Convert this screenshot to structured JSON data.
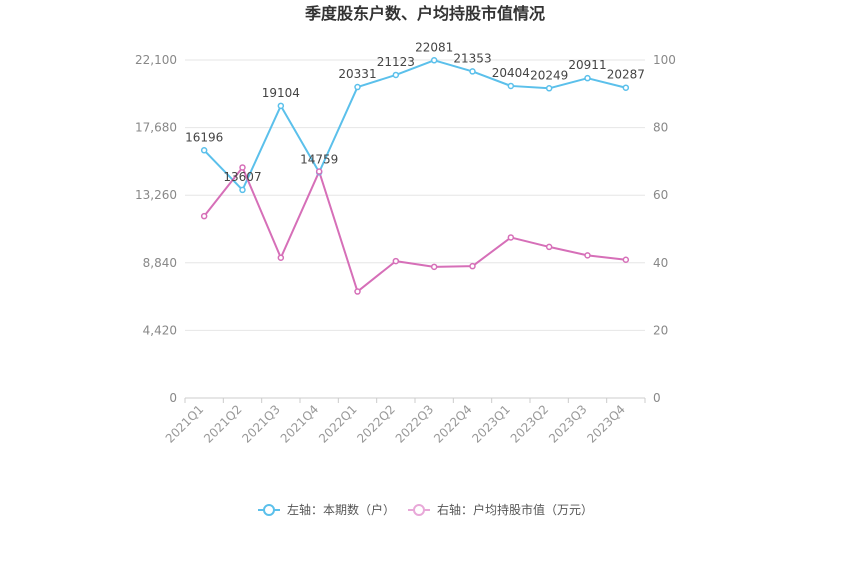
{
  "chart_data": {
    "type": "line",
    "title": "季度股东户数、户均持股市值情况",
    "categories": [
      "2021Q1",
      "2021Q2",
      "2021Q3",
      "2021Q4",
      "2022Q1",
      "2022Q2",
      "2022Q3",
      "2022Q4",
      "2023Q1",
      "2023Q2",
      "2023Q3",
      "2023Q4"
    ],
    "left_axis": {
      "min": 0,
      "max": 22100,
      "ticks": [
        "0",
        "4,420",
        "8,840",
        "13,260",
        "17,680",
        "22,100"
      ]
    },
    "right_axis": {
      "min": 0,
      "max": 100,
      "ticks": [
        "0",
        "20",
        "40",
        "60",
        "80",
        "100"
      ]
    },
    "series": [
      {
        "name": "左轴：本期数（户）",
        "axis": "left",
        "color": "#5bc0eb",
        "values": [
          16196,
          13607,
          19104,
          14759,
          20331,
          21123,
          22081,
          21353,
          20404,
          20249,
          20911,
          20287
        ],
        "labels": [
          "16196",
          "13607",
          "19104",
          "14759",
          "20331",
          "21123",
          "22081",
          "21353",
          "20404",
          "20249",
          "20911",
          "20287"
        ]
      },
      {
        "name": "右轴：户均持股市值（万元）",
        "axis": "right",
        "color": "#d66fb8",
        "values": [
          53.8,
          68.2,
          41.5,
          67.0,
          31.5,
          40.5,
          38.8,
          39.0,
          47.5,
          44.7,
          42.2,
          40.9
        ]
      }
    ],
    "grid": true,
    "legend_position": "bottom"
  }
}
